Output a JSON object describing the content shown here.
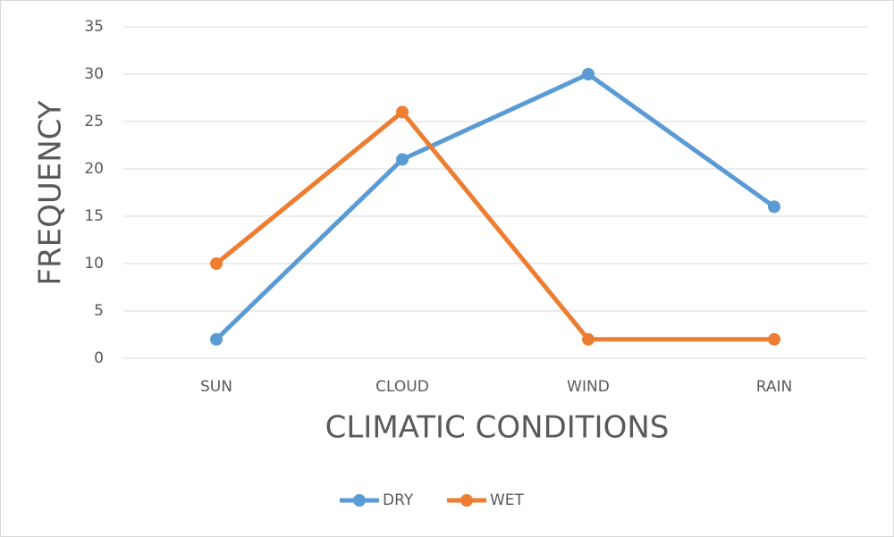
{
  "chart_data": {
    "type": "line",
    "x_label": "CLIMATIC CONDITIONS",
    "y_label": "FREQUENCY",
    "categories": [
      "SUN",
      "CLOUD",
      "WIND",
      "RAIN"
    ],
    "series": [
      {
        "name": "DRY",
        "color": "#5b9bd5",
        "values": [
          2,
          21,
          30,
          16
        ]
      },
      {
        "name": "WET",
        "color": "#ed7d31",
        "values": [
          10,
          26,
          2,
          2
        ]
      }
    ],
    "ylim": [
      0,
      35
    ],
    "yticks": [
      0,
      5,
      10,
      15,
      20,
      25,
      30,
      35
    ],
    "grid": true,
    "legend": "bottom"
  }
}
